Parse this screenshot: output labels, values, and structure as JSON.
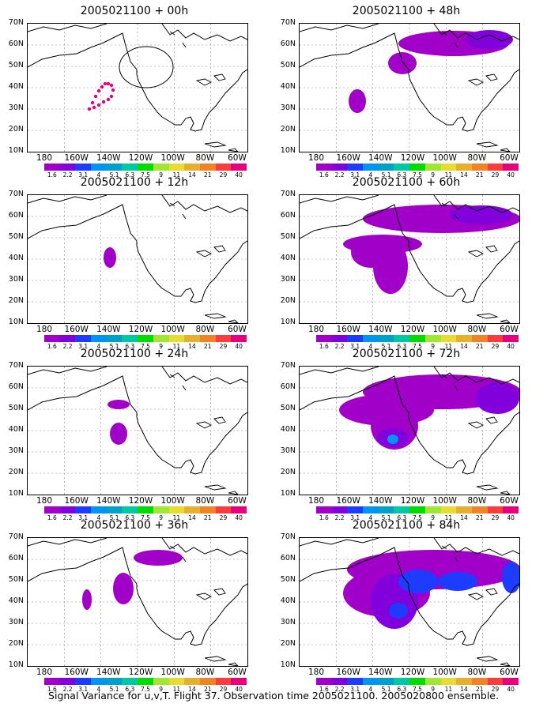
{
  "panels": [
    {
      "id": "p00",
      "title": "2005021100 + 00h"
    },
    {
      "id": "p12",
      "title": "2005021100 + 12h"
    },
    {
      "id": "p24",
      "title": "2005021100 + 24h"
    },
    {
      "id": "p36",
      "title": "2005021100 + 36h"
    },
    {
      "id": "p48",
      "title": "2005021100 + 48h"
    },
    {
      "id": "p60",
      "title": "2005021100 + 60h"
    },
    {
      "id": "p72",
      "title": "2005021100 + 72h"
    },
    {
      "id": "p84",
      "title": "2005021100 + 84h"
    }
  ],
  "lat_labels": [
    "70N",
    "60N",
    "50N",
    "40N",
    "30N",
    "20N",
    "10N"
  ],
  "lon_labels": [
    "180",
    "160W",
    "140W",
    "120W",
    "100W",
    "80W",
    "60W"
  ],
  "colorbar": {
    "labels": [
      "1.6",
      "2.2",
      "3.1",
      "4",
      "5.1",
      "6.3",
      "7.5",
      "9",
      "11",
      "14",
      "21",
      "29",
      "40"
    ],
    "colors": [
      "#a000c8",
      "#8200dc",
      "#1e3cff",
      "#0096f0",
      "#00a0c8",
      "#00c8a0",
      "#00dc00",
      "#a0e632",
      "#e6dc32",
      "#e6af2d",
      "#f08228",
      "#fa3c3c",
      "#e6007d"
    ]
  },
  "region_colors": {
    "lowest": "#a000c8",
    "low": "#8200dc",
    "mid": "#1e3cff",
    "high": "#0096f0"
  },
  "caption": "Signal Variance for u,v,T. Flight 37. Observation time 2005021100. 2005020800 ensemble."
}
